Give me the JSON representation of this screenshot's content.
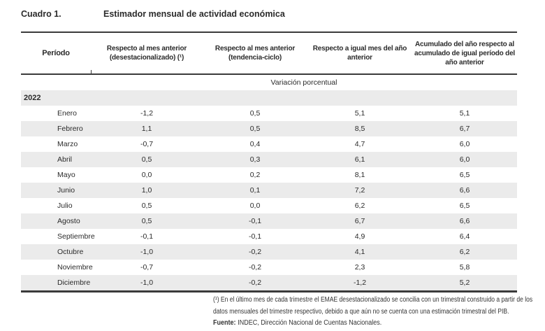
{
  "title": {
    "label": "Cuadro 1.",
    "text": "Estimador mensual de actividad económica"
  },
  "table": {
    "columns": [
      "Período",
      "Respecto al mes anterior (desestacionalizado) (¹)",
      "Respecto al mes anterior (tendencia-ciclo)",
      "Respecto a igual mes del año anterior",
      "Acumulado del año respecto al acumulado de igual período del año anterior"
    ],
    "unit_label": "Variación porcentual",
    "year_group": "2022",
    "rows": [
      {
        "period": "Enero",
        "values": [
          "-1,2",
          "0,5",
          "5,1",
          "5,1"
        ]
      },
      {
        "period": "Febrero",
        "values": [
          "1,1",
          "0,5",
          "8,5",
          "6,7"
        ]
      },
      {
        "period": "Marzo",
        "values": [
          "-0,7",
          "0,4",
          "4,7",
          "6,0"
        ]
      },
      {
        "period": "Abril",
        "values": [
          "0,5",
          "0,3",
          "6,1",
          "6,0"
        ]
      },
      {
        "period": "Mayo",
        "values": [
          "0,0",
          "0,2",
          "8,1",
          "6,5"
        ]
      },
      {
        "period": "Junio",
        "values": [
          "1,0",
          "0,1",
          "7,2",
          "6,6"
        ]
      },
      {
        "period": "Julio",
        "values": [
          "0,5",
          "0,0",
          "6,2",
          "6,5"
        ]
      },
      {
        "period": "Agosto",
        "values": [
          "0,5",
          "-0,1",
          "6,7",
          "6,6"
        ]
      },
      {
        "period": "Septiembre",
        "values": [
          "-0,1",
          "-0,1",
          "4,9",
          "6,4"
        ]
      },
      {
        "period": "Octubre",
        "values": [
          "-1,0",
          "-0,2",
          "4,1",
          "6,2"
        ]
      },
      {
        "period": "Noviembre",
        "values": [
          "-0,7",
          "-0,2",
          "2,3",
          "5,8"
        ]
      },
      {
        "period": "Diciembre",
        "values": [
          "-1,0",
          "-0,2",
          "-1,2",
          "5,2"
        ]
      }
    ]
  },
  "footnote": {
    "text": "(¹) En el último mes de cada trimestre el EMAE desestacionalizado se concilia con un trimestral construido a partir de los datos mensuales del trimestre respectivo, debido a que aún no se cuenta con una estimación trimestral del PIB."
  },
  "source": {
    "label": "Fuente:",
    "text": "INDEC, Dirección Nacional de Cuentas Nacionales."
  },
  "colors": {
    "stripe": "#ebebeb",
    "rule": "#3b3b3b",
    "text": "#2b2b2b"
  }
}
